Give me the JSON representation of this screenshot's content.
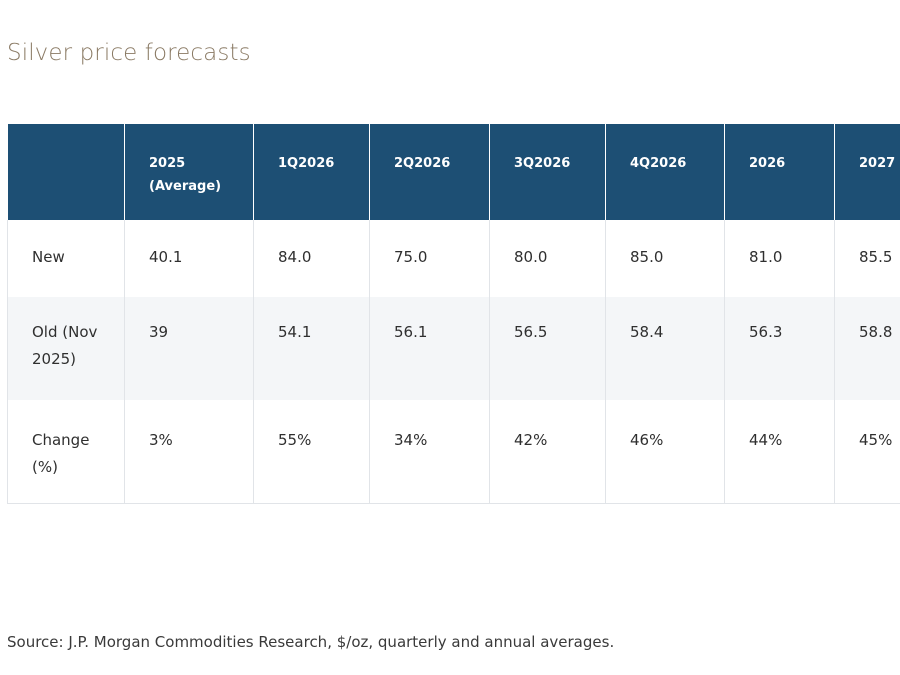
{
  "title": "Silver price forecasts",
  "table": {
    "headers": [
      "",
      "2025\n(Average)",
      "1Q2026",
      "2Q2026",
      "3Q2026",
      "4Q2026",
      "2026",
      "2027"
    ],
    "rows": [
      {
        "label": "New",
        "values": [
          "40.1",
          "84.0",
          "75.0",
          "80.0",
          "85.0",
          "81.0",
          "85.5"
        ]
      },
      {
        "label": "Old (Nov\n2025)",
        "values": [
          "39",
          "54.1",
          "56.1",
          "56.5",
          "58.4",
          "56.3",
          "58.8"
        ]
      },
      {
        "label": "Change\n(%)",
        "values": [
          "3%",
          "55%",
          "34%",
          "42%",
          "46%",
          "44%",
          "45%"
        ]
      }
    ]
  },
  "source": "Source: J.P. Morgan Commodities Research, $/oz, quarterly and annual averages."
}
